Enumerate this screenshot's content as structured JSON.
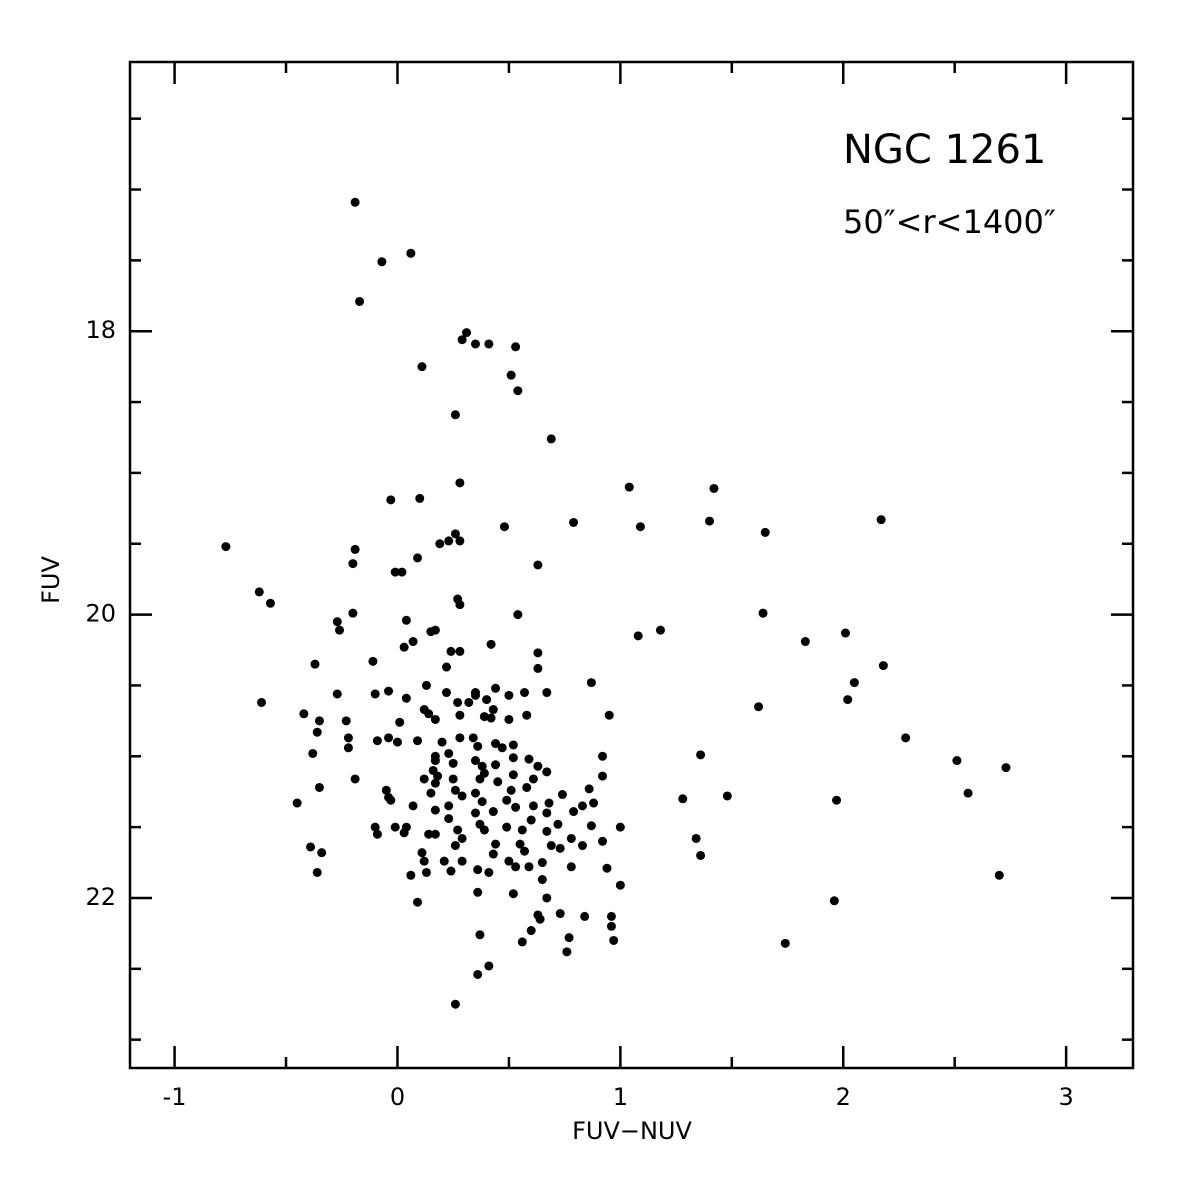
{
  "chart_data": {
    "type": "scatter",
    "annotations": [
      "NGC 1261",
      "50″<r<1400″"
    ],
    "x_label": "FUV−NUV",
    "y_label": "FUV",
    "color": "#000000",
    "xlim": [
      -1.2,
      3.3
    ],
    "ylim": [
      23.2,
      16.1
    ],
    "xticks": [
      -1,
      0,
      1,
      2,
      3
    ],
    "yticks": [
      18,
      20,
      22
    ],
    "xminorticks": [
      -0.5,
      0.5,
      1.5,
      2.5
    ],
    "yminorticks": [
      16.5,
      17,
      17.5,
      18.5,
      19,
      19.5,
      20.5,
      21,
      21.5,
      22.5,
      23
    ],
    "x": [
      -0.19,
      -0.07,
      0.06,
      -0.17,
      0.31,
      0.29,
      0.35,
      0.41,
      0.53,
      0.11,
      0.51,
      0.54,
      0.26,
      0.69,
      0.28,
      -0.03,
      0.1,
      1.04,
      1.42,
      0.79,
      1.09,
      1.4,
      0.48,
      2.17,
      1.65,
      0.26,
      0.23,
      0.19,
      0.28,
      -0.77,
      -0.19,
      -0.2,
      0.09,
      0.63,
      -0.01,
      0.02,
      -0.62,
      -0.57,
      0.27,
      0.28,
      -0.2,
      0.54,
      1.64,
      -0.27,
      -0.26,
      0.04,
      0.15,
      0.17,
      1.18,
      1.08,
      1.83,
      2.01,
      0.07,
      0.03,
      0.24,
      0.28,
      0.42,
      0.63,
      -0.37,
      -0.11,
      0.63,
      2.18,
      0.22,
      0.87,
      2.05,
      0.13,
      -0.27,
      -0.1,
      0.35,
      0.35,
      0.44,
      0.57,
      0.67,
      2.02,
      -0.61,
      1.62,
      -0.42,
      -0.04,
      0.04,
      0.22,
      0.27,
      0.32,
      0.4,
      0.43,
      0.5,
      0.12,
      -0.35,
      -0.23,
      0.01,
      0.14,
      0.17,
      0.28,
      0.39,
      0.42,
      0.5,
      0.58,
      0.95,
      0.0,
      -0.22,
      -0.38,
      -0.09,
      -0.04,
      0.09,
      0.2,
      0.28,
      0.34,
      0.36,
      0.44,
      0.47,
      0.52,
      0.17,
      0.23,
      0.35,
      0.25,
      0.38,
      0.39,
      0.44,
      0.52,
      0.59,
      0.63,
      0.61,
      0.92,
      0.92,
      1.36,
      -0.22,
      2.28,
      2.51,
      2.73,
      -0.36,
      0.17,
      0.52,
      -0.19,
      0.16,
      0.18,
      0.12,
      0.17,
      0.25,
      0.37,
      0.26,
      0.35,
      0.45,
      0.67,
      0.58,
      0.74,
      0.86,
      0.88,
      1.28,
      1.48,
      1.97,
      2.56,
      -0.35,
      -0.45,
      -0.05,
      -0.04,
      0.15,
      0.29,
      0.38,
      0.49,
      0.51,
      -0.03,
      0.07,
      0.17,
      0.23,
      0.53,
      0.61,
      0.68,
      0.67,
      0.79,
      0.83,
      0.23,
      0.35,
      0.43,
      0.6,
      0.49,
      0.72,
      0.87,
      -0.1,
      -0.09,
      -0.01,
      0.03,
      0.04,
      0.14,
      0.17,
      0.27,
      0.37,
      0.39,
      0.56,
      0.67,
      0.78,
      0.92,
      1.0,
      1.34,
      -0.39,
      -0.34,
      0.11,
      0.26,
      0.29,
      0.44,
      0.55,
      0.57,
      0.69,
      0.73,
      0.83,
      1.36,
      0.5,
      0.43,
      0.12,
      0.21,
      0.29,
      0.65,
      0.78,
      -0.36,
      0.06,
      0.13,
      0.24,
      0.36,
      0.53,
      0.59,
      0.41,
      0.65,
      0.94,
      2.7,
      1.0,
      0.36,
      0.67,
      0.09,
      0.52,
      1.96,
      0.73,
      0.84,
      0.96,
      0.63,
      0.64,
      0.96,
      0.97,
      0.37,
      0.6,
      0.77,
      0.76,
      0.56,
      1.74,
      0.41,
      0.36,
      0.26
    ],
    "y": [
      17.09,
      17.51,
      17.45,
      17.79,
      18.01,
      18.06,
      18.09,
      18.09,
      18.11,
      18.25,
      18.31,
      18.42,
      18.59,
      18.76,
      19.07,
      19.19,
      19.18,
      19.1,
      19.11,
      19.35,
      19.38,
      19.34,
      19.38,
      19.33,
      19.42,
      19.43,
      19.48,
      19.5,
      19.48,
      19.52,
      19.54,
      19.64,
      19.6,
      19.65,
      19.7,
      19.7,
      19.84,
      19.92,
      19.89,
      19.93,
      19.99,
      20.0,
      19.99,
      20.05,
      20.11,
      20.04,
      20.12,
      20.11,
      20.11,
      20.15,
      20.19,
      20.13,
      20.19,
      20.23,
      20.26,
      20.26,
      20.21,
      20.27,
      20.35,
      20.33,
      20.38,
      20.36,
      20.37,
      20.48,
      20.48,
      20.5,
      20.56,
      20.56,
      20.55,
      20.57,
      20.52,
      20.55,
      20.55,
      20.6,
      20.62,
      20.65,
      20.7,
      20.54,
      20.59,
      20.55,
      20.62,
      20.62,
      20.6,
      20.67,
      20.57,
      20.67,
      20.75,
      20.75,
      20.76,
      20.7,
      20.74,
      20.71,
      20.72,
      20.73,
      20.74,
      20.71,
      20.71,
      20.9,
      20.87,
      20.98,
      20.89,
      20.87,
      20.89,
      20.9,
      20.87,
      20.87,
      20.93,
      20.91,
      20.94,
      20.92,
      21.0,
      20.98,
      21.03,
      21.05,
      21.07,
      21.12,
      21.06,
      21.01,
      21.02,
      21.07,
      21.16,
      21.0,
      21.14,
      20.99,
      20.94,
      20.87,
      21.03,
      21.08,
      20.83,
      21.03,
      21.13,
      21.16,
      21.1,
      21.14,
      21.16,
      21.19,
      21.16,
      21.16,
      21.24,
      21.26,
      21.18,
      21.11,
      21.22,
      21.27,
      21.23,
      21.33,
      21.3,
      21.28,
      21.31,
      21.26,
      21.22,
      21.33,
      21.24,
      21.29,
      21.26,
      21.28,
      21.32,
      21.31,
      21.24,
      21.31,
      21.35,
      21.38,
      21.35,
      21.36,
      21.35,
      21.33,
      21.4,
      21.39,
      21.35,
      21.44,
      21.4,
      21.39,
      21.45,
      21.5,
      21.48,
      21.49,
      21.5,
      21.55,
      21.5,
      21.54,
      21.5,
      21.55,
      21.55,
      21.52,
      21.48,
      21.52,
      21.52,
      21.53,
      21.58,
      21.6,
      21.5,
      21.58,
      21.64,
      21.68,
      21.68,
      21.63,
      21.58,
      21.62,
      21.62,
      21.67,
      21.63,
      21.65,
      21.63,
      21.7,
      21.74,
      21.69,
      21.74,
      21.74,
      21.74,
      21.75,
      21.78,
      21.82,
      21.84,
      21.82,
      21.81,
      21.8,
      21.78,
      21.78,
      21.82,
      21.87,
      21.79,
      21.84,
      21.91,
      21.96,
      22.0,
      22.03,
      21.97,
      22.02,
      22.11,
      22.13,
      22.13,
      22.12,
      22.15,
      22.2,
      22.3,
      22.26,
      22.23,
      22.28,
      22.38,
      22.31,
      22.32,
      22.48,
      22.54,
      22.75
    ]
  }
}
